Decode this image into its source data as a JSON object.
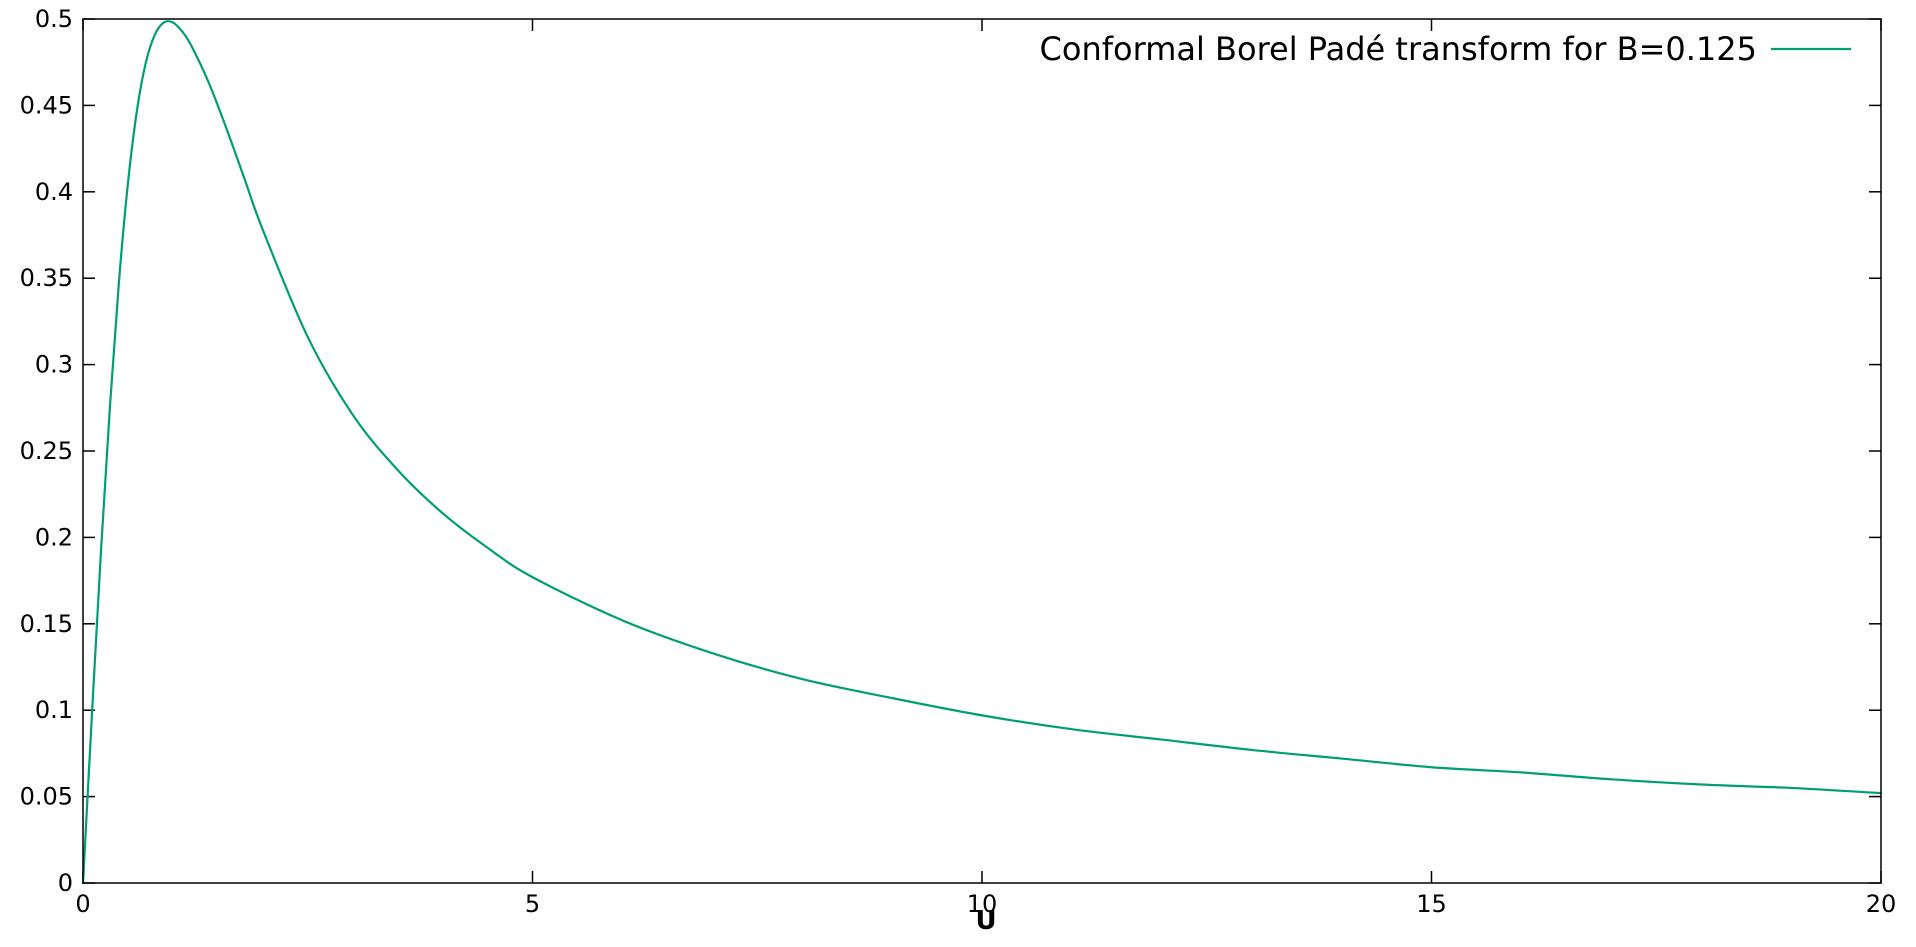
{
  "chart_data": {
    "type": "line",
    "title": "",
    "xlabel": "U",
    "ylabel": "",
    "xlim": [
      0,
      20
    ],
    "ylim": [
      0,
      0.5
    ],
    "grid": false,
    "legend_position": "top-right",
    "x_ticks": [
      "0",
      "5",
      "10",
      "15",
      "20"
    ],
    "y_ticks": [
      "0",
      "0.05",
      "0.1",
      "0.15",
      "0.2",
      "0.25",
      "0.3",
      "0.35",
      "0.4",
      "0.45",
      "0.5"
    ],
    "series": [
      {
        "name": "Conformal Borel Padé transform for B=0.125",
        "color": "#009e73",
        "x": [
          0,
          0.1,
          0.2,
          0.3,
          0.4,
          0.5,
          0.6,
          0.7,
          0.8,
          0.9,
          1.0,
          1.1,
          1.2,
          1.4,
          1.6,
          1.8,
          2.0,
          2.5,
          3.0,
          3.5,
          4.0,
          4.5,
          5.0,
          6.0,
          7.0,
          8.0,
          9.0,
          10.0,
          11.0,
          12.0,
          13.0,
          14.0,
          15.0,
          16.0,
          17.0,
          18.0,
          19.0,
          20.0
        ],
        "y": [
          0,
          0.098,
          0.192,
          0.276,
          0.348,
          0.405,
          0.447,
          0.475,
          0.491,
          0.498,
          0.498,
          0.493,
          0.485,
          0.463,
          0.436,
          0.407,
          0.378,
          0.316,
          0.271,
          0.239,
          0.214,
          0.194,
          0.177,
          0.152,
          0.133,
          0.118,
          0.107,
          0.097,
          0.089,
          0.083,
          0.077,
          0.072,
          0.067,
          0.064,
          0.06,
          0.057,
          0.055,
          0.052
        ]
      }
    ]
  }
}
